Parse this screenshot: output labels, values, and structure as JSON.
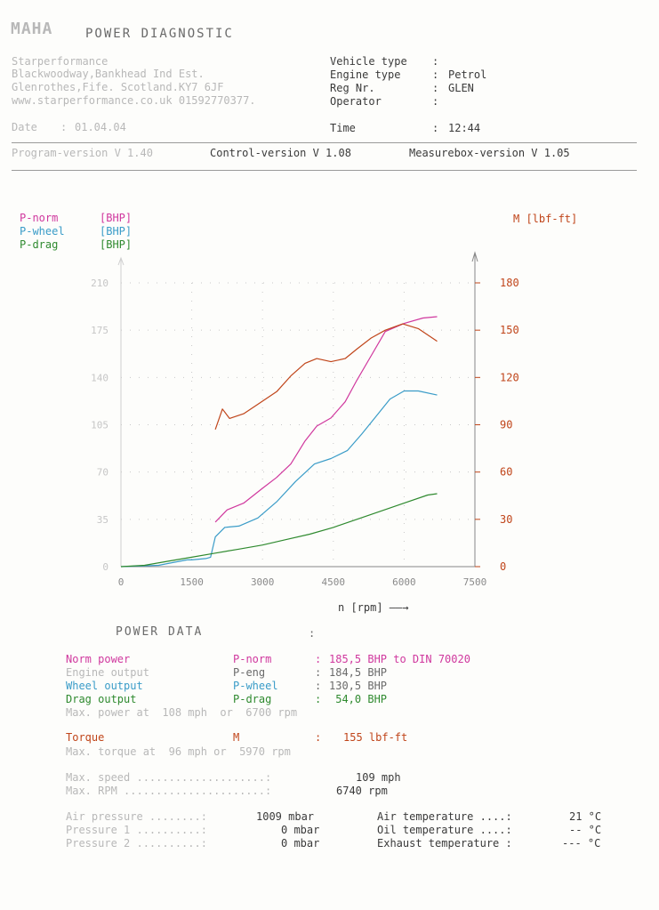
{
  "header": {
    "logo_text": "MAHA",
    "title": "POWER DIAGNOSTIC",
    "company": [
      "Starperformance",
      "Blackwoodway,Bankhead Ind Est.",
      "Glenrothes,Fife. Scotland.KY7 6JF",
      "www.starperformance.co.uk 01592770377."
    ],
    "date_label": "Date",
    "date_value": "01.04.04",
    "vehicle_type_label": "Vehicle type",
    "vehicle_type_value": "",
    "engine_type_label": "Engine type",
    "engine_type_value": "Petrol",
    "reg_label": "Reg Nr.",
    "reg_value": "GLEN",
    "operator_label": "Operator",
    "operator_value": "",
    "time_label": "Time",
    "time_value": "12:44",
    "program_version": "Program-version V 1.40",
    "control_version": "Control-version V 1.08",
    "measurebox_version": "Measurebox-version V 1.05"
  },
  "legend": {
    "p_norm": "P-norm",
    "p_norm_unit": "[BHP]",
    "p_wheel": "P-wheel",
    "p_wheel_unit": "[BHP]",
    "p_drag": "P-drag",
    "p_drag_unit": "[BHP]",
    "torque": "M [lbf-ft]"
  },
  "colors": {
    "p_norm": "#d0389e",
    "p_wheel": "#3a9cc8",
    "p_drag": "#2f8a2f",
    "torque": "#c0451a",
    "axis": "#888888"
  },
  "chart_data": {
    "type": "line",
    "xlabel": "n [rpm] ——→",
    "x_ticks": [
      "0",
      "1500",
      "3000",
      "4500",
      "6000",
      "7500"
    ],
    "x_tick_values": [
      0,
      1500,
      3000,
      4500,
      6000,
      7500
    ],
    "xlim": [
      0,
      7500
    ],
    "left_ticks": [
      "0",
      "35",
      "70",
      "105",
      "140",
      "175",
      "210"
    ],
    "left_tick_values": [
      0,
      35,
      70,
      105,
      140,
      175,
      210
    ],
    "ylim_left": [
      0,
      210
    ],
    "right_ticks": [
      "0",
      "30",
      "60",
      "90",
      "120",
      "150",
      "180"
    ],
    "right_tick_values": [
      0,
      30,
      60,
      90,
      120,
      150,
      180
    ],
    "ylim_right": [
      0,
      180
    ],
    "series": [
      {
        "name": "P-norm",
        "axis": "left",
        "color": "#d0389e",
        "points": [
          [
            2000,
            33
          ],
          [
            2250,
            42
          ],
          [
            2600,
            47
          ],
          [
            3000,
            58
          ],
          [
            3300,
            66
          ],
          [
            3600,
            76
          ],
          [
            3900,
            93
          ],
          [
            4150,
            104
          ],
          [
            4450,
            110
          ],
          [
            4750,
            122
          ],
          [
            5000,
            138
          ],
          [
            5300,
            156
          ],
          [
            5600,
            174
          ],
          [
            6000,
            180
          ],
          [
            6400,
            184
          ],
          [
            6700,
            185
          ]
        ]
      },
      {
        "name": "P-wheel",
        "axis": "left",
        "color": "#3a9cc8",
        "points": [
          [
            0,
            0
          ],
          [
            800,
            1
          ],
          [
            1100,
            3
          ],
          [
            1400,
            5
          ],
          [
            1500,
            5
          ],
          [
            1800,
            6
          ],
          [
            1900,
            7
          ],
          [
            2000,
            22
          ],
          [
            2200,
            29
          ],
          [
            2500,
            30
          ],
          [
            2900,
            36
          ],
          [
            3300,
            48
          ],
          [
            3700,
            63
          ],
          [
            4100,
            76
          ],
          [
            4450,
            80
          ],
          [
            4800,
            86
          ],
          [
            5100,
            98
          ],
          [
            5400,
            111
          ],
          [
            5700,
            124
          ],
          [
            6000,
            130
          ],
          [
            6300,
            130
          ],
          [
            6700,
            127
          ]
        ]
      },
      {
        "name": "P-drag",
        "axis": "left",
        "color": "#2f8a2f",
        "points": [
          [
            0,
            0
          ],
          [
            500,
            1
          ],
          [
            1000,
            4
          ],
          [
            1500,
            7
          ],
          [
            2000,
            10
          ],
          [
            2500,
            13
          ],
          [
            3000,
            16
          ],
          [
            3500,
            20
          ],
          [
            4000,
            24
          ],
          [
            4500,
            29
          ],
          [
            5000,
            35
          ],
          [
            5500,
            41
          ],
          [
            6000,
            47
          ],
          [
            6500,
            53
          ],
          [
            6700,
            54
          ]
        ]
      },
      {
        "name": "M",
        "axis": "right",
        "color": "#c0451a",
        "points": [
          [
            2000,
            87
          ],
          [
            2150,
            100
          ],
          [
            2300,
            94
          ],
          [
            2600,
            97
          ],
          [
            2900,
            103
          ],
          [
            3300,
            111
          ],
          [
            3600,
            121
          ],
          [
            3900,
            129
          ],
          [
            4150,
            132
          ],
          [
            4450,
            130
          ],
          [
            4750,
            132
          ],
          [
            5000,
            138
          ],
          [
            5300,
            145
          ],
          [
            5600,
            150
          ],
          [
            5970,
            154
          ],
          [
            6300,
            151
          ],
          [
            6700,
            143
          ]
        ]
      }
    ]
  },
  "power_data": {
    "title": "POWER DATA",
    "colon": ":",
    "rows": [
      {
        "label": "Norm power",
        "sym": "P-norm",
        "colon": ":",
        "value": "185,5 BHP to DIN 70020"
      },
      {
        "label": "Engine output",
        "sym": "P-eng",
        "colon": ":",
        "value": "184,5 BHP"
      },
      {
        "label": "Wheel output",
        "sym": "P-wheel",
        "colon": ":",
        "value": "130,5 BHP"
      },
      {
        "label": "Drag output",
        "sym": "P-drag",
        "colon": ":",
        "value": " 54,0 BHP"
      }
    ],
    "max_power": "Max. power at  108 mph  or  6700 rpm",
    "torque_label": "Torque",
    "torque_sym": "M",
    "torque_colon": ":",
    "torque_value": "155 lbf-ft",
    "max_torque": "Max. torque at  96 mph or  5970 rpm",
    "max_speed_label": "Max. speed ....................:",
    "max_speed_value": "109 mph",
    "max_rpm_label": "Max. RPM ......................:",
    "max_rpm_value": "6740 rpm",
    "air_pressure_label": "Air pressure ........:",
    "air_pressure_value": "1009 mbar",
    "pressure1_label": "Pressure 1 ..........:",
    "pressure1_value": "0 mbar",
    "pressure2_label": "Pressure 2 ..........:",
    "pressure2_value": "0 mbar",
    "air_temp_label": "Air temperature ....:",
    "air_temp_value": "21 °C",
    "oil_temp_label": "Oil temperature ....:",
    "oil_temp_value": "-- °C",
    "exhaust_temp_label": "Exhaust temperature :",
    "exhaust_temp_value": "--- °C"
  }
}
